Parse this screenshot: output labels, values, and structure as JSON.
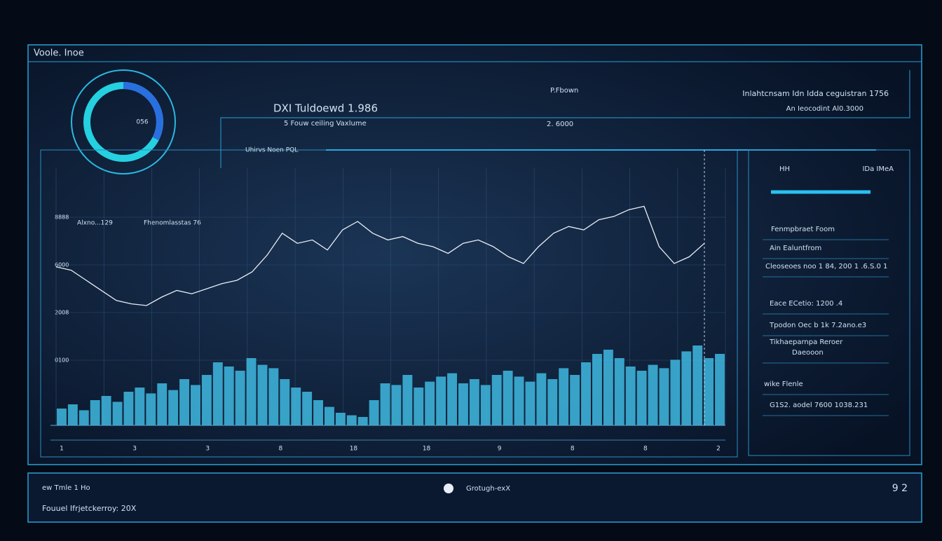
{
  "header": {
    "title": "Voole. Inoe"
  },
  "gauge": {
    "label": "056"
  },
  "summary": {
    "name": "DXI Tuldoewd 1.986",
    "caption": "5 Fouw ceiling Vaxlume",
    "center_title": "P.Fbown",
    "center_value": "2. 6000",
    "right_title": "Inlahtcnsam Idn Idda ceguistran 1756",
    "right_value": "An Ieocodint Al0.3000"
  },
  "chart": {
    "title": "Uhirvs Noen PQL",
    "annotations": [
      "Alxno...129",
      "Fhenomlasstas 76"
    ],
    "yticks": [
      "8888",
      "6000",
      "2008",
      "0100"
    ],
    "xticks": [
      "1",
      "3",
      "3",
      "8",
      "18",
      "18",
      "9",
      "8",
      "8",
      "2"
    ],
    "price": {
      "color": "#e8eef5",
      "ylim": [
        0,
        100
      ],
      "values": [
        58,
        56,
        50,
        44,
        38,
        36,
        35,
        40,
        44,
        42,
        45,
        48,
        50,
        55,
        65,
        78,
        72,
        74,
        68,
        80,
        85,
        78,
        74,
        76,
        72,
        70,
        66,
        72,
        74,
        70,
        64,
        60,
        70,
        78,
        82,
        80,
        86,
        88,
        92,
        94,
        70,
        60,
        64,
        72
      ]
    },
    "volume": {
      "color": "#3fb8e0",
      "ylim": [
        0,
        100
      ],
      "values": [
        20,
        25,
        18,
        30,
        35,
        28,
        40,
        45,
        38,
        50,
        42,
        55,
        48,
        60,
        75,
        70,
        65,
        80,
        72,
        68,
        55,
        45,
        40,
        30,
        22,
        15,
        12,
        10,
        30,
        50,
        48,
        60,
        45,
        52,
        58,
        62,
        50,
        55,
        48,
        60,
        65,
        58,
        52,
        62,
        55,
        68,
        60,
        75,
        85,
        90,
        80,
        70,
        65,
        72,
        68,
        78,
        88,
        95,
        80,
        85
      ]
    }
  },
  "side": {
    "head_left": "HH",
    "head_right": "IDa IMeA",
    "rows": [
      "Fenmpbraet Foom",
      "Ain Ealuntfrom",
      "Cleoseoes noo 1 84, 200 1 .6.S.0 1",
      "Eace ECetio: 1200 .4",
      "Tpodon Oec b 1k 7.2ano.e3",
      "Tikhaeparnpa Reroer",
      "Daeooon",
      "wike Flenle",
      "G1S2. aodel 7600 1038.231"
    ]
  },
  "footer": {
    "left_top": "ew Tmle 1 Ho",
    "left_bottom": "Fouuel Ifrjetckerroy: 20X",
    "center": "Grotugh-exX",
    "right": "9 2"
  }
}
